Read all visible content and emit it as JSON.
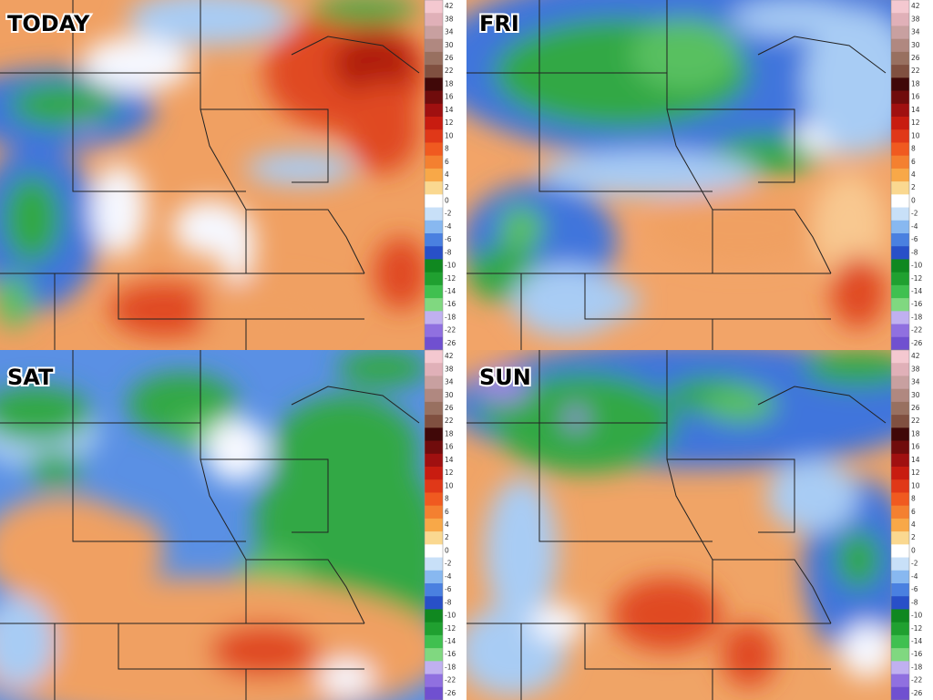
{
  "panels": [
    {
      "label": "TODAY"
    },
    {
      "label": "FRI"
    },
    {
      "label": "SAT"
    },
    {
      "label": "SUN"
    }
  ],
  "color_scale": {
    "labels": [
      "42",
      "38",
      "34",
      "30",
      "26",
      "22",
      "18",
      "16",
      "14",
      "12",
      "10",
      "8",
      "6",
      "4",
      "2",
      "0",
      "-2",
      "-4",
      "-6",
      "-8",
      "-10",
      "-12",
      "-14",
      "-16",
      "-18",
      "-22",
      "-26"
    ]
  }
}
